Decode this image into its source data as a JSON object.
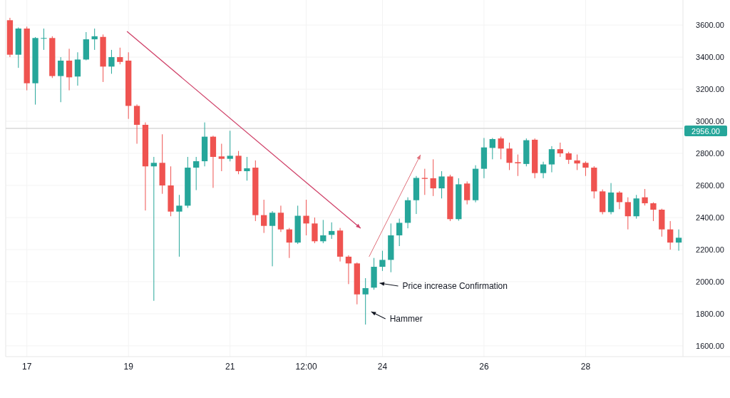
{
  "chart_data": {
    "type": "candlestick",
    "categories": [
      null,
      null,
      "17",
      null,
      null,
      null,
      null,
      null,
      null,
      null,
      null,
      null,
      null,
      null,
      "19",
      null,
      null,
      null,
      null,
      null,
      null,
      null,
      null,
      null,
      null,
      null,
      "21",
      null,
      null,
      null,
      null,
      null,
      null,
      null,
      null,
      "12:00",
      null,
      null,
      null,
      null,
      null,
      null,
      null,
      null,
      "24",
      null,
      null,
      null,
      null,
      null,
      null,
      null,
      null,
      null,
      null,
      null,
      "26",
      null,
      null,
      null,
      null,
      null,
      null,
      null,
      null,
      null,
      null,
      null,
      "28",
      null,
      null,
      null,
      null,
      null,
      null,
      null,
      null,
      null,
      null,
      null
    ],
    "ohlc": [
      [
        3630,
        3645,
        3400,
        3415
      ],
      [
        3415,
        3585,
        3333,
        3578
      ],
      [
        3578,
        3590,
        3193,
        3237
      ],
      [
        3237,
        3525,
        3104,
        3519
      ],
      [
        3515,
        3578,
        3445,
        3519
      ],
      [
        3519,
        3530,
        3270,
        3282
      ],
      [
        3282,
        3400,
        3119,
        3378
      ],
      [
        3378,
        3452,
        3193,
        3274
      ],
      [
        3279,
        3430,
        3222,
        3385
      ],
      [
        3385,
        3556,
        3380,
        3511
      ],
      [
        3511,
        3578,
        3445,
        3530
      ],
      [
        3526,
        3541,
        3245,
        3341
      ],
      [
        3341,
        3445,
        3296,
        3400
      ],
      [
        3400,
        3459,
        3355,
        3370
      ],
      [
        3378,
        3430,
        3015,
        3096
      ],
      [
        3096,
        3105,
        2860,
        2978
      ],
      [
        2978,
        2993,
        2444,
        2719
      ],
      [
        2719,
        2778,
        1881,
        2741
      ],
      [
        2741,
        2919,
        2548,
        2600
      ],
      [
        2600,
        2719,
        2408,
        2437
      ],
      [
        2437,
        2541,
        2156,
        2474
      ],
      [
        2474,
        2778,
        2460,
        2711
      ],
      [
        2711,
        2778,
        2571,
        2751
      ],
      [
        2751,
        2993,
        2719,
        2904
      ],
      [
        2904,
        2910,
        2585,
        2778
      ],
      [
        2781,
        2860,
        2689,
        2766
      ],
      [
        2766,
        2941,
        2750,
        2785
      ],
      [
        2785,
        2815,
        2670,
        2689
      ],
      [
        2689,
        2778,
        2630,
        2707
      ],
      [
        2711,
        2756,
        2378,
        2415
      ],
      [
        2415,
        2511,
        2304,
        2348
      ],
      [
        2348,
        2440,
        2096,
        2430
      ],
      [
        2430,
        2474,
        2310,
        2326
      ],
      [
        2326,
        2335,
        2148,
        2244
      ],
      [
        2244,
        2474,
        2235,
        2411
      ],
      [
        2411,
        2511,
        2289,
        2363
      ],
      [
        2363,
        2400,
        2240,
        2252
      ],
      [
        2252,
        2385,
        2240,
        2289
      ],
      [
        2292,
        2370,
        2267,
        2316
      ],
      [
        2319,
        2335,
        2126,
        2156
      ],
      [
        2156,
        2165,
        1985,
        2114
      ],
      [
        2114,
        2120,
        1859,
        1921
      ],
      [
        1921,
        2022,
        1733,
        1960
      ],
      [
        1963,
        2148,
        1950,
        2093
      ],
      [
        2093,
        2193,
        2067,
        2136
      ],
      [
        2136,
        2363,
        2059,
        2289
      ],
      [
        2289,
        2393,
        2222,
        2367
      ],
      [
        2367,
        2526,
        2333,
        2508
      ],
      [
        2508,
        2659,
        2422,
        2647
      ],
      [
        2647,
        2704,
        2541,
        2641
      ],
      [
        2645,
        2763,
        2534,
        2582
      ],
      [
        2582,
        2689,
        2519,
        2656
      ],
      [
        2656,
        2667,
        2378,
        2390
      ],
      [
        2390,
        2645,
        2380,
        2607
      ],
      [
        2612,
        2625,
        2482,
        2508
      ],
      [
        2508,
        2726,
        2495,
        2704
      ],
      [
        2704,
        2896,
        2645,
        2837
      ],
      [
        2834,
        2896,
        2763,
        2889
      ],
      [
        2893,
        2904,
        2763,
        2830
      ],
      [
        2830,
        2867,
        2696,
        2741
      ],
      [
        2745,
        2793,
        2659,
        2738
      ],
      [
        2734,
        2893,
        2719,
        2882
      ],
      [
        2885,
        2893,
        2645,
        2677
      ],
      [
        2677,
        2748,
        2645,
        2731
      ],
      [
        2731,
        2845,
        2682,
        2826
      ],
      [
        2826,
        2867,
        2778,
        2800
      ],
      [
        2800,
        2810,
        2734,
        2760
      ],
      [
        2756,
        2793,
        2696,
        2737
      ],
      [
        2741,
        2750,
        2659,
        2711
      ],
      [
        2711,
        2720,
        2519,
        2563
      ],
      [
        2563,
        2575,
        2420,
        2434
      ],
      [
        2434,
        2615,
        2420,
        2556
      ],
      [
        2556,
        2565,
        2452,
        2496
      ],
      [
        2496,
        2526,
        2326,
        2408
      ],
      [
        2408,
        2541,
        2393,
        2519
      ],
      [
        2526,
        2578,
        2475,
        2489
      ],
      [
        2489,
        2495,
        2378,
        2449
      ],
      [
        2449,
        2455,
        2281,
        2326
      ],
      [
        2326,
        2378,
        2200,
        2244
      ],
      [
        2244,
        2326,
        2193,
        2274
      ]
    ],
    "colors": [
      "#ef5350",
      "#26a69a",
      "#ef5350",
      "#26a69a",
      "#26a69a",
      "#ef5350",
      "#26a69a",
      "#ef5350",
      "#26a69a",
      "#26a69a",
      "#26a69a",
      "#ef5350",
      "#26a69a",
      "#ef5350",
      "#ef5350",
      "#ef5350",
      "#ef5350",
      "#26a69a",
      "#ef5350",
      "#ef5350",
      "#26a69a",
      "#26a69a",
      "#26a69a",
      "#26a69a",
      "#ef5350",
      "#ef5350",
      "#26a69a",
      "#ef5350",
      "#26a69a",
      "#ef5350",
      "#ef5350",
      "#26a69a",
      "#ef5350",
      "#ef5350",
      "#26a69a",
      "#ef5350",
      "#ef5350",
      "#26a69a",
      "#26a69a",
      "#ef5350",
      "#ef5350",
      "#ef5350",
      "#26a69a",
      "#26a69a",
      "#26a69a",
      "#26a69a",
      "#26a69a",
      "#26a69a",
      "#26a69a",
      "#ef5350",
      "#ef5350",
      "#26a69a",
      "#ef5350",
      "#26a69a",
      "#ef5350",
      "#26a69a",
      "#26a69a",
      "#26a69a",
      "#ef5350",
      "#ef5350",
      "#ef5350",
      "#26a69a",
      "#ef5350",
      "#26a69a",
      "#26a69a",
      "#ef5350",
      "#ef5350",
      "#ef5350",
      "#ef5350",
      "#ef5350",
      "#ef5350",
      "#26a69a",
      "#ef5350",
      "#ef5350",
      "#26a69a",
      "#ef5350",
      "#ef5350",
      "#ef5350",
      "#ef5350",
      "#26a69a"
    ],
    "ylim": [
      1533,
      3756
    ],
    "yticks": [
      {
        "value": 1600,
        "label": "1600.00"
      },
      {
        "value": 1800,
        "label": "1800.00"
      },
      {
        "value": 2000,
        "label": "2000.00"
      },
      {
        "value": 2200,
        "label": "2200.00"
      },
      {
        "value": 2400,
        "label": "2400.00"
      },
      {
        "value": 2600,
        "label": "2600.00"
      },
      {
        "value": 2800,
        "label": "2800.00"
      },
      {
        "value": 3000,
        "label": "3000.00"
      },
      {
        "value": 3200,
        "label": "3200.00"
      },
      {
        "value": 3400,
        "label": "3400.00"
      },
      {
        "value": 3600,
        "label": "3600.00"
      }
    ],
    "grid": true,
    "ref_lines": [
      {
        "axis": "y",
        "value": 2956,
        "label": "2956.00",
        "color": "#d9d9d9"
      }
    ],
    "annotations": [
      "Price increase Confirmation",
      "Hammer"
    ]
  }
}
